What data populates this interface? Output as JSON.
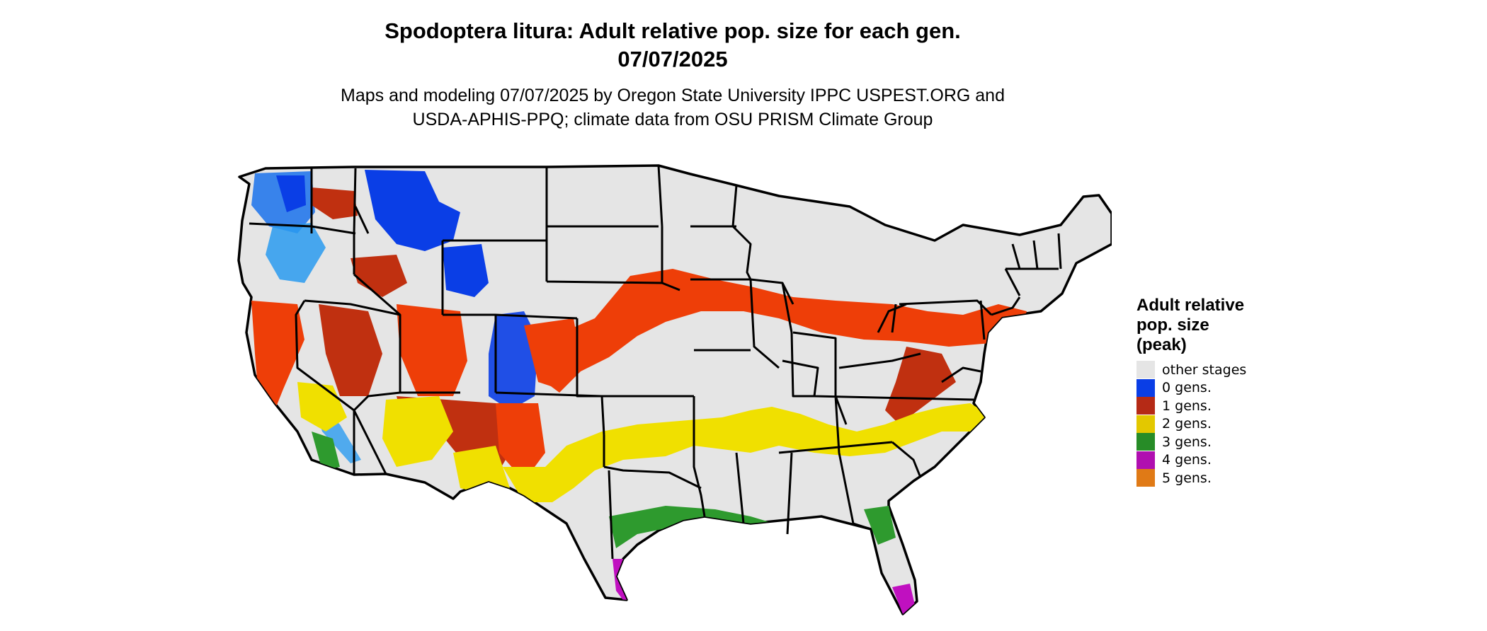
{
  "header": {
    "title_line1": "Spodoptera litura: Adult relative pop. size for each gen.",
    "title_line2": "07/07/2025",
    "subtitle_line1": "Maps and modeling 07/07/2025 by Oregon State University IPPC USPEST.ORG and",
    "subtitle_line2": "USDA-APHIS-PPQ; climate data from OSU PRISM Climate Group"
  },
  "legend": {
    "title_lines": [
      "Adult relative",
      "pop. size",
      "(peak)"
    ],
    "items": [
      {
        "label": "other stages",
        "color": "#e5e5e5"
      },
      {
        "label": "0 gens.",
        "color": "#0a3ee6"
      },
      {
        "label": "1 gens.",
        "color": "#b52a16"
      },
      {
        "label": "2 gens.",
        "color": "#e3c800"
      },
      {
        "label": "3 gens.",
        "color": "#278c27"
      },
      {
        "label": "4 gens.",
        "color": "#b00fb0"
      },
      {
        "label": "5 gens.",
        "color": "#e07a16"
      }
    ]
  },
  "colors": {
    "land": "#e5e5e5",
    "border": "#000000",
    "gen0": "#0a3ee6",
    "gen0_light": "#2a9bf0",
    "gen1": "#c03010",
    "gen1_bright": "#ee3e08",
    "gen2": "#f0e000",
    "gen3": "#2e9a2e",
    "gen4": "#c010c0",
    "gen5": "#e07a16"
  }
}
